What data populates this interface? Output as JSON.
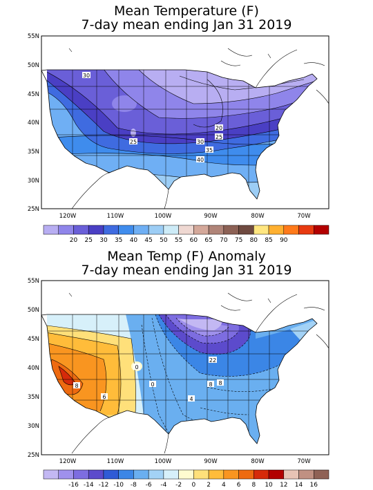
{
  "panels": [
    {
      "title_line1": "Mean Temperature (F)",
      "title_line2": "7-day mean ending Jan 31 2019",
      "lat_labels": [
        "55N",
        "50N",
        "45N",
        "40N",
        "35N",
        "30N",
        "25N"
      ],
      "lon_labels": [
        "120W",
        "110W",
        "100W",
        "90W",
        "80W",
        "70W"
      ],
      "contour_labels": [
        "30",
        "25",
        "20",
        "25",
        "30",
        "35",
        "40"
      ],
      "legend": {
        "labels": [
          "20",
          "25",
          "30",
          "35",
          "40",
          "45",
          "50",
          "55",
          "60",
          "65",
          "70",
          "75",
          "80",
          "85",
          "90"
        ],
        "colors": [
          "#b8aef2",
          "#8f85ea",
          "#6a5fd8",
          "#4a3fc4",
          "#3f6be0",
          "#3f8ced",
          "#6faff4",
          "#9ccdf5",
          "#cdebf7",
          "#efd8d2",
          "#d4a89a",
          "#b08478",
          "#8c6155",
          "#6f4a40",
          "#ffe680",
          "#ffb030",
          "#ff7a1a",
          "#e83a10",
          "#b30000"
        ]
      }
    },
    {
      "title_line1": "Mean Temp (F) Anomaly",
      "title_line2": "7-day mean ending Jan 31 2019",
      "lat_labels": [
        "55N",
        "50N",
        "45N",
        "40N",
        "35N",
        "30N",
        "25N"
      ],
      "lon_labels": [
        "120W",
        "110W",
        "100W",
        "90W",
        "80W",
        "70W"
      ],
      "contour_labels": [
        "22",
        "8",
        "8",
        "0",
        "4",
        "8",
        "6",
        "0"
      ],
      "legend": {
        "labels": [
          "-16",
          "-14",
          "-12",
          "-10",
          "-8",
          "-6",
          "-4",
          "-2",
          "0",
          "2",
          "4",
          "6",
          "8",
          "10",
          "12",
          "14",
          "16"
        ],
        "colors": [
          "#c3b8f3",
          "#9f91ec",
          "#7d6de0",
          "#5c4bcc",
          "#2f5bd6",
          "#3b86e6",
          "#6aaff0",
          "#a3d2f6",
          "#d7f0fa",
          "#fffbd0",
          "#ffe07a",
          "#ffbc3a",
          "#f99520",
          "#ee6a10",
          "#d62a0a",
          "#b20000",
          "#e7c3b5",
          "#c09082",
          "#8f6155"
        ]
      }
    }
  ]
}
